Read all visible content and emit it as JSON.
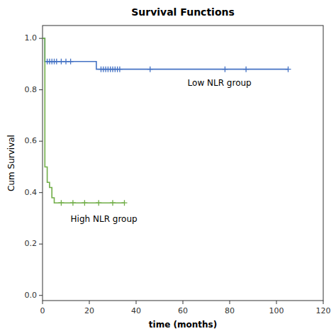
{
  "chart_data": {
    "type": "step",
    "title": "Survival Functions",
    "x_label": "time (months)",
    "y_label": "Cum Survival",
    "xlim": [
      0,
      120
    ],
    "ylim": [
      -0.02,
      1.05
    ],
    "xticks": [
      0,
      20,
      40,
      60,
      80,
      100,
      120
    ],
    "yticks": [
      {
        "value": 0.0,
        "label": "0.0"
      },
      0.2,
      0.4,
      0.6,
      0.8,
      {
        "value": 1.0,
        "label": "1.0"
      }
    ],
    "grid": false,
    "series": [
      {
        "type": "step",
        "color": "#4472c4",
        "x": [
          0,
          1,
          22,
          23,
          105
        ],
        "values": [
          1.0,
          0.91,
          0.91,
          0.88,
          0.88
        ]
      },
      {
        "type": "scatter",
        "marker": "plus",
        "color": "#4472c4",
        "x": [
          2,
          3,
          4,
          5,
          6,
          8,
          10,
          12,
          25,
          26,
          27,
          28,
          29,
          30,
          31,
          32,
          33,
          46,
          78,
          87,
          105
        ],
        "values": [
          0.91,
          0.91,
          0.91,
          0.91,
          0.91,
          0.91,
          0.91,
          0.91,
          0.88,
          0.88,
          0.88,
          0.88,
          0.88,
          0.88,
          0.88,
          0.88,
          0.88,
          0.88,
          0.88,
          0.88,
          0.88
        ]
      },
      {
        "type": "step",
        "color": "#70ad47",
        "x": [
          0,
          1,
          2,
          3,
          4,
          5,
          7,
          35
        ],
        "values": [
          1.0,
          0.5,
          0.44,
          0.42,
          0.38,
          0.36,
          0.36,
          0.36
        ]
      },
      {
        "type": "scatter",
        "marker": "plus",
        "color": "#70ad47",
        "x": [
          8,
          13,
          18,
          24,
          30,
          35
        ],
        "values": [
          0.36,
          0.36,
          0.36,
          0.36,
          0.36,
          0.36
        ]
      }
    ],
    "annotations": [
      {
        "text": "Low NLR group",
        "x": 62,
        "y": 0.825
      },
      {
        "text": "High NLR group",
        "x": 12,
        "y": 0.295
      }
    ]
  }
}
